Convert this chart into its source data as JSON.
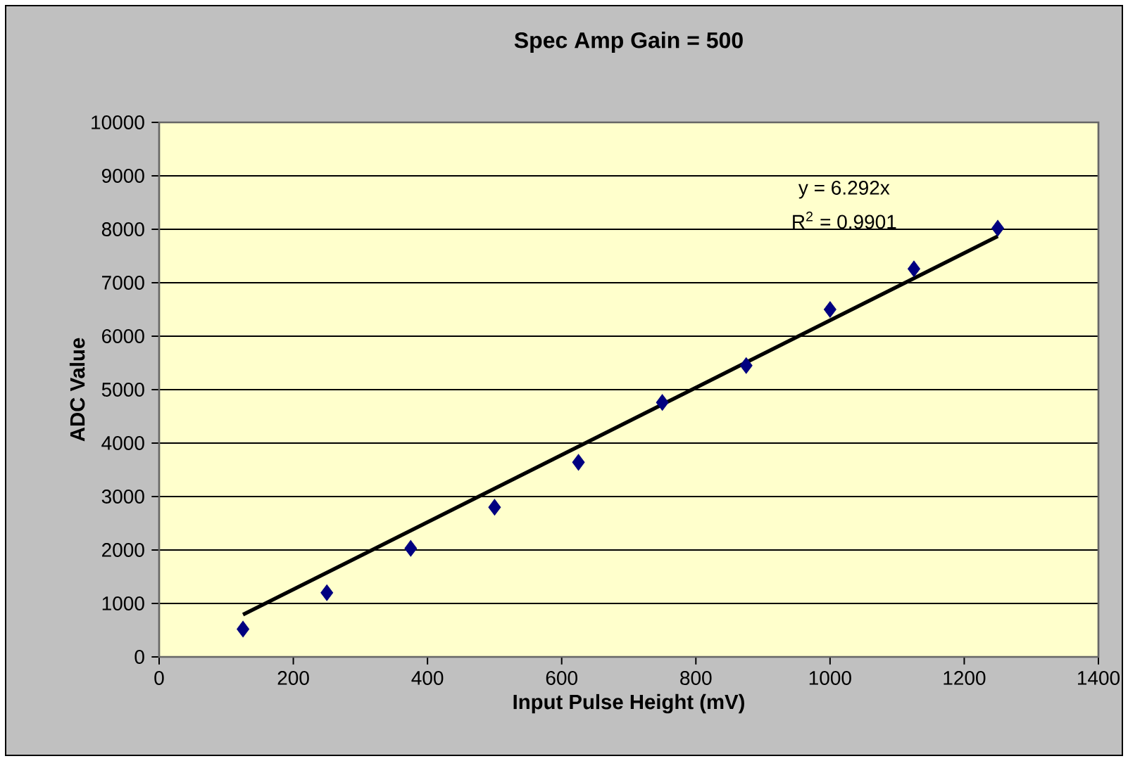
{
  "chart_data": {
    "type": "scatter",
    "title": "Spec Amp Gain = 500",
    "xlabel": "Input Pulse Height  (mV)",
    "ylabel": "ADC Value",
    "annotations": [
      "y = 6.292x",
      "R$^{2}$ = 0.9901"
    ],
    "xlim": [
      0,
      1400
    ],
    "xticks": [
      0,
      200,
      400,
      600,
      800,
      1000,
      1200,
      1400
    ],
    "ylim": [
      0,
      10000
    ],
    "yticks": [
      0,
      1000,
      2000,
      3000,
      4000,
      5000,
      6000,
      7000,
      8000,
      9000,
      10000
    ],
    "grid": "y",
    "series": [
      {
        "marker": "diamond",
        "color": "#000080",
        "x": [
          125,
          250,
          375,
          500,
          625,
          750,
          875,
          1000,
          1125,
          1250
        ],
        "values": [
          520,
          1200,
          2030,
          2800,
          3640,
          4760,
          5450,
          6500,
          7260,
          8020
        ]
      },
      {
        "type": "line",
        "color": "#000000",
        "x": [
          125,
          1250
        ],
        "values": [
          790,
          7870
        ]
      }
    ]
  }
}
